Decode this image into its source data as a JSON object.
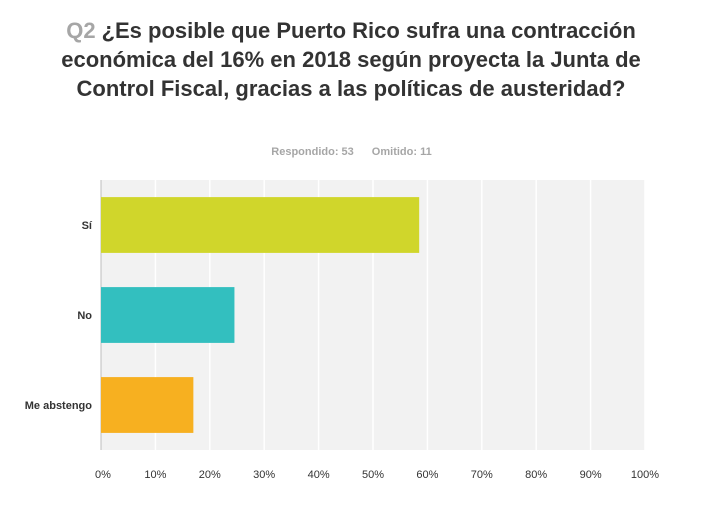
{
  "question": {
    "number": "Q2",
    "text": "¿Es posible que Puerto Rico sufra una contracción económica del 16% en 2018 según proyecta la Junta de Control Fiscal, gracias a las políticas de austeridad?"
  },
  "stats": {
    "answered": "Respondido: 53",
    "skipped": "Omitido: 11"
  },
  "chart_data": {
    "type": "bar",
    "orientation": "horizontal",
    "categories": [
      "Sí",
      "No",
      "Me abstengo"
    ],
    "values": [
      58.49,
      24.53,
      16.98
    ],
    "colors": [
      "#d0d62b",
      "#33bfbf",
      "#f7b020"
    ],
    "xlim": [
      0,
      100
    ],
    "ticks": [
      "0%",
      "10%",
      "20%",
      "30%",
      "40%",
      "50%",
      "60%",
      "70%",
      "80%",
      "90%",
      "100%"
    ],
    "grid": true,
    "plot_background": "#f2f2f2",
    "grid_color": "#ffffff"
  }
}
